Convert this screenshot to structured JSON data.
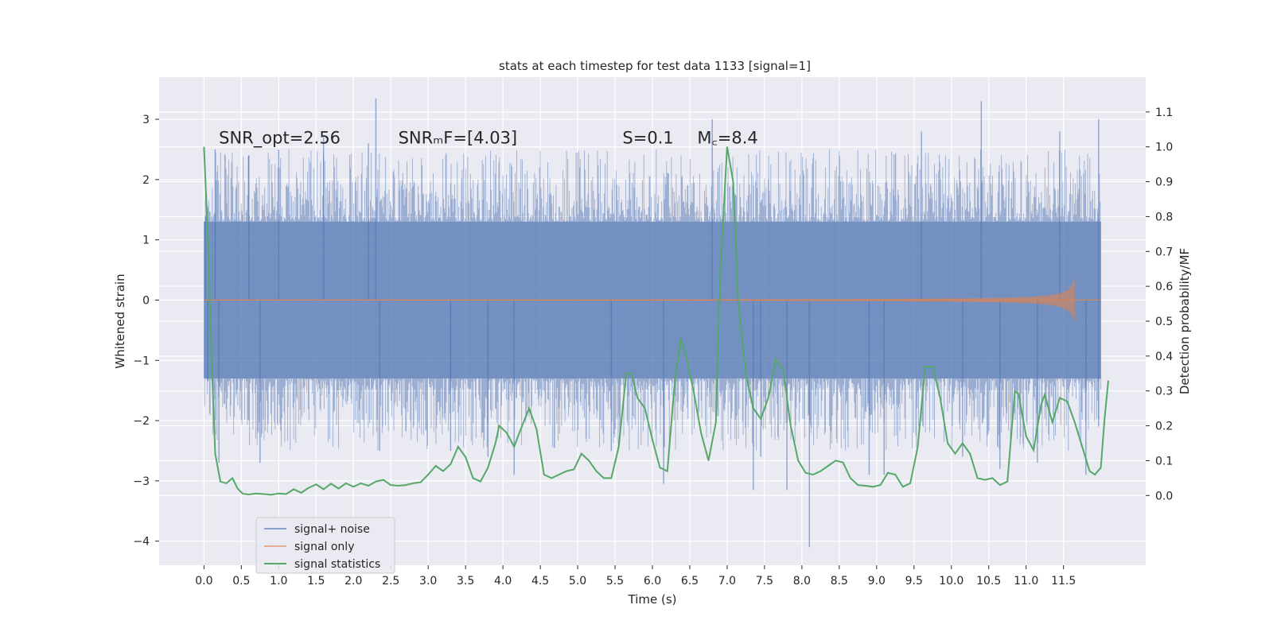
{
  "chart_data": {
    "type": "line",
    "title": "stats at each timestep for test data 1133 [signal=1]",
    "xlabel": "Time (s)",
    "ylabel_left": "Whitened strain",
    "ylabel_right": "Detection probability/MF",
    "xlim": [
      -0.6,
      12.6
    ],
    "ylim_left": [
      -4.4,
      3.7
    ],
    "ylim_right": [
      -0.2,
      1.2
    ],
    "x_ticks": [
      0.0,
      0.5,
      1.0,
      1.5,
      2.0,
      2.5,
      3.0,
      3.5,
      4.0,
      4.5,
      5.0,
      5.5,
      6.0,
      6.5,
      7.0,
      7.5,
      8.0,
      8.5,
      9.0,
      9.5,
      10.0,
      10.5,
      11.0,
      11.5
    ],
    "x_tick_labels": [
      "0.0",
      "0.5",
      "1.0",
      "1.5",
      "2.0",
      "2.5",
      "3.0",
      "3.5",
      "4.0",
      "4.5",
      "5.0",
      "5.5",
      "6.0",
      "6.5",
      "7.0",
      "7.5",
      "8.0",
      "8.5",
      "9.0",
      "9.5",
      "10.0",
      "10.5",
      "11.0",
      "11.5"
    ],
    "y_left_ticks": [
      3,
      2,
      1,
      0,
      -1,
      -2,
      -3,
      -4
    ],
    "y_left_tick_labels": [
      "3",
      "2",
      "1",
      "0",
      "−1",
      "−2",
      "−3",
      "−4"
    ],
    "y_right_ticks": [
      1.1,
      1.0,
      0.9,
      0.8,
      0.7,
      0.6,
      0.5,
      0.4,
      0.3,
      0.2,
      0.1,
      0.0
    ],
    "y_right_tick_labels": [
      "1.1",
      "1.0",
      "0.9",
      "0.8",
      "0.7",
      "0.6",
      "0.5",
      "0.4",
      "0.3",
      "0.2",
      "0.1",
      "0.0"
    ],
    "grid": true,
    "legend_position": "lower-left",
    "annotations": [
      {
        "text": "SNR_opt=2.56",
        "x": 0.2,
        "y": 2.6
      },
      {
        "text": "SNRₘF=[4.03]",
        "x": 2.6,
        "y": 2.6
      },
      {
        "text": "S=0.1",
        "x": 5.6,
        "y": 2.6
      },
      {
        "text": "M꜀=8.4",
        "x": 6.6,
        "y": 2.6
      }
    ],
    "series": [
      {
        "name": "signal+ noise",
        "axis": "left",
        "color": "#4c72b0",
        "kind": "noise-band",
        "x_range": [
          0.0,
          12.0
        ],
        "dense_band": [
          -1.3,
          1.3
        ],
        "spikes": [
          [
            0.02,
            1.4
          ],
          [
            0.05,
            -1.35
          ],
          [
            0.15,
            2.5
          ],
          [
            0.2,
            -2.7
          ],
          [
            0.6,
            2.4
          ],
          [
            0.75,
            -2.7
          ],
          [
            1.0,
            2.5
          ],
          [
            1.6,
            2.7
          ],
          [
            2.2,
            2.6
          ],
          [
            2.3,
            3.35
          ],
          [
            2.35,
            -2.5
          ],
          [
            3.3,
            -2.5
          ],
          [
            3.8,
            -2.6
          ],
          [
            4.15,
            -2.9
          ],
          [
            5.45,
            -2.5
          ],
          [
            6.15,
            -3.05
          ],
          [
            6.8,
            3.0
          ],
          [
            7.35,
            -3.15
          ],
          [
            7.45,
            -2.6
          ],
          [
            7.8,
            -3.15
          ],
          [
            8.1,
            -4.1
          ],
          [
            8.9,
            -2.9
          ],
          [
            9.1,
            -2.9
          ],
          [
            9.6,
            2.8
          ],
          [
            10.15,
            -2.6
          ],
          [
            10.4,
            3.3
          ],
          [
            10.65,
            -2.8
          ],
          [
            11.15,
            -2.7
          ],
          [
            11.45,
            2.8
          ],
          [
            11.8,
            -2.9
          ],
          [
            11.97,
            3.0
          ],
          [
            11.97,
            -2.1
          ]
        ]
      },
      {
        "name": "signal only",
        "axis": "left",
        "color": "#dd8452",
        "kind": "chirp",
        "x_range": [
          0.0,
          12.0
        ],
        "peak_time": 11.65,
        "peak_amplitude": 0.38
      },
      {
        "name": "signal statistics",
        "axis": "right",
        "color": "#55a868",
        "kind": "line",
        "points": [
          [
            0.0,
            1.0
          ],
          [
            0.06,
            0.7
          ],
          [
            0.1,
            0.4
          ],
          [
            0.15,
            0.12
          ],
          [
            0.22,
            0.04
          ],
          [
            0.3,
            0.035
          ],
          [
            0.38,
            0.05
          ],
          [
            0.45,
            0.02
          ],
          [
            0.52,
            0.005
          ],
          [
            0.6,
            0.003
          ],
          [
            0.7,
            0.006
          ],
          [
            0.8,
            0.004
          ],
          [
            0.9,
            0.002
          ],
          [
            1.0,
            0.006
          ],
          [
            1.1,
            0.004
          ],
          [
            1.2,
            0.018
          ],
          [
            1.3,
            0.008
          ],
          [
            1.4,
            0.022
          ],
          [
            1.5,
            0.032
          ],
          [
            1.6,
            0.018
          ],
          [
            1.7,
            0.034
          ],
          [
            1.8,
            0.02
          ],
          [
            1.9,
            0.035
          ],
          [
            2.0,
            0.025
          ],
          [
            2.1,
            0.035
          ],
          [
            2.2,
            0.028
          ],
          [
            2.3,
            0.04
          ],
          [
            2.4,
            0.045
          ],
          [
            2.5,
            0.03
          ],
          [
            2.6,
            0.028
          ],
          [
            2.7,
            0.03
          ],
          [
            2.8,
            0.035
          ],
          [
            2.9,
            0.038
          ],
          [
            3.0,
            0.06
          ],
          [
            3.1,
            0.085
          ],
          [
            3.2,
            0.07
          ],
          [
            3.3,
            0.09
          ],
          [
            3.4,
            0.14
          ],
          [
            3.5,
            0.11
          ],
          [
            3.6,
            0.05
          ],
          [
            3.7,
            0.04
          ],
          [
            3.8,
            0.08
          ],
          [
            3.9,
            0.15
          ],
          [
            3.95,
            0.2
          ],
          [
            4.05,
            0.18
          ],
          [
            4.15,
            0.14
          ],
          [
            4.22,
            0.18
          ],
          [
            4.35,
            0.25
          ],
          [
            4.45,
            0.19
          ],
          [
            4.55,
            0.06
          ],
          [
            4.65,
            0.05
          ],
          [
            4.75,
            0.06
          ],
          [
            4.85,
            0.07
          ],
          [
            4.95,
            0.075
          ],
          [
            5.05,
            0.12
          ],
          [
            5.15,
            0.1
          ],
          [
            5.25,
            0.07
          ],
          [
            5.35,
            0.05
          ],
          [
            5.45,
            0.05
          ],
          [
            5.55,
            0.14
          ],
          [
            5.65,
            0.35
          ],
          [
            5.72,
            0.35
          ],
          [
            5.8,
            0.28
          ],
          [
            5.9,
            0.25
          ],
          [
            6.0,
            0.16
          ],
          [
            6.1,
            0.08
          ],
          [
            6.2,
            0.07
          ],
          [
            6.3,
            0.33
          ],
          [
            6.38,
            0.45
          ],
          [
            6.45,
            0.4
          ],
          [
            6.55,
            0.3
          ],
          [
            6.65,
            0.18
          ],
          [
            6.75,
            0.1
          ],
          [
            6.85,
            0.21
          ],
          [
            6.9,
            0.6
          ],
          [
            7.0,
            1.0
          ],
          [
            7.08,
            0.9
          ],
          [
            7.15,
            0.55
          ],
          [
            7.25,
            0.35
          ],
          [
            7.35,
            0.25
          ],
          [
            7.45,
            0.22
          ],
          [
            7.55,
            0.28
          ],
          [
            7.65,
            0.39
          ],
          [
            7.75,
            0.36
          ],
          [
            7.85,
            0.2
          ],
          [
            7.95,
            0.1
          ],
          [
            8.05,
            0.065
          ],
          [
            8.15,
            0.06
          ],
          [
            8.25,
            0.07
          ],
          [
            8.35,
            0.085
          ],
          [
            8.45,
            0.1
          ],
          [
            8.55,
            0.095
          ],
          [
            8.65,
            0.05
          ],
          [
            8.75,
            0.03
          ],
          [
            8.85,
            0.028
          ],
          [
            8.95,
            0.025
          ],
          [
            9.05,
            0.03
          ],
          [
            9.15,
            0.065
          ],
          [
            9.25,
            0.06
          ],
          [
            9.35,
            0.025
          ],
          [
            9.45,
            0.035
          ],
          [
            9.55,
            0.14
          ],
          [
            9.65,
            0.37
          ],
          [
            9.75,
            0.37
          ],
          [
            9.85,
            0.28
          ],
          [
            9.95,
            0.15
          ],
          [
            10.05,
            0.12
          ],
          [
            10.15,
            0.15
          ],
          [
            10.25,
            0.12
          ],
          [
            10.35,
            0.05
          ],
          [
            10.45,
            0.045
          ],
          [
            10.55,
            0.05
          ],
          [
            10.65,
            0.03
          ],
          [
            10.75,
            0.04
          ],
          [
            10.85,
            0.3
          ],
          [
            10.9,
            0.29
          ],
          [
            11.0,
            0.17
          ],
          [
            11.1,
            0.13
          ],
          [
            11.2,
            0.26
          ],
          [
            11.25,
            0.29
          ],
          [
            11.35,
            0.21
          ],
          [
            11.45,
            0.28
          ],
          [
            11.55,
            0.27
          ],
          [
            11.65,
            0.21
          ],
          [
            11.75,
            0.14
          ],
          [
            11.85,
            0.07
          ],
          [
            11.92,
            0.06
          ],
          [
            12.0,
            0.08
          ],
          [
            12.05,
            0.22
          ],
          [
            12.1,
            0.33
          ]
        ]
      }
    ]
  },
  "colors": {
    "plot_background": "#eaeaf2",
    "grid": "#ffffff",
    "noise": "#4c72b0",
    "signal": "#dd8452",
    "statistics": "#55a868"
  }
}
